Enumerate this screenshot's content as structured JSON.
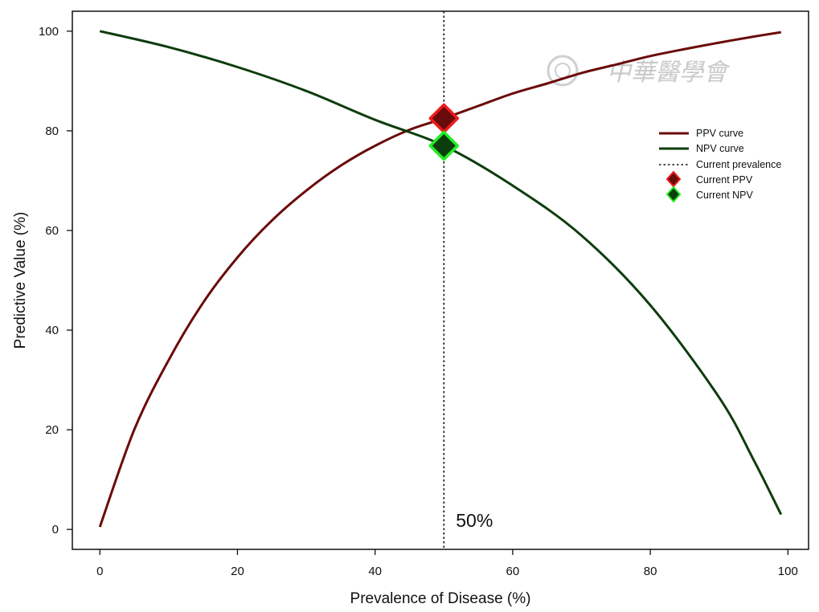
{
  "chart_data": {
    "type": "line",
    "xlabel": "Prevalence of Disease (%)",
    "ylabel": "Predictive Value (%)",
    "xlim": [
      -4,
      103
    ],
    "ylim": [
      -4,
      104
    ],
    "x_ticks": [
      0,
      20,
      40,
      60,
      80,
      100
    ],
    "y_ticks": [
      0,
      20,
      40,
      60,
      80,
      100
    ],
    "grid": false,
    "legend_position": "top-right",
    "series": [
      {
        "name": "PPV curve",
        "color": "#6b0a0a",
        "x": [
          0,
          5,
          10,
          15,
          20,
          25,
          30,
          35,
          40,
          45,
          50,
          55,
          60,
          65,
          70,
          75,
          80,
          85,
          90,
          95,
          99
        ],
        "values": [
          0.5,
          20.0,
          34.0,
          45.5,
          54.6,
          62.0,
          68.0,
          73.0,
          77.0,
          80.2,
          82.5,
          85.0,
          87.5,
          89.5,
          91.6,
          93.3,
          95.0,
          96.4,
          97.7,
          98.9,
          99.8
        ]
      },
      {
        "name": "NPV curve",
        "color": "#0d3d0d",
        "x": [
          0,
          10,
          20,
          30,
          40,
          50,
          60,
          70,
          80,
          90,
          95,
          99
        ],
        "values": [
          100,
          96.8,
          92.8,
          88.0,
          82.2,
          77.0,
          69.0,
          59.0,
          45.0,
          26.5,
          14.0,
          3.0
        ]
      }
    ],
    "reference_line": {
      "name": "Current prevalence",
      "x": 50,
      "style": "dotted",
      "color": "#111111"
    },
    "markers": [
      {
        "name": "Current PPV",
        "x": 50,
        "y": 82.5,
        "fill": "#6b0a0a",
        "edge": "#ee1c1c"
      },
      {
        "name": "Current NPV",
        "x": 50,
        "y": 77.0,
        "fill": "#0d3d0d",
        "edge": "#22ee22"
      }
    ],
    "annotations": [
      {
        "text": "50%",
        "x": 50,
        "y": 1.8
      }
    ],
    "legend": [
      "PPV curve",
      "NPV curve",
      "Current prevalence",
      "Current PPV",
      "Current NPV"
    ]
  },
  "watermark": {
    "text": "中華醫學會"
  }
}
